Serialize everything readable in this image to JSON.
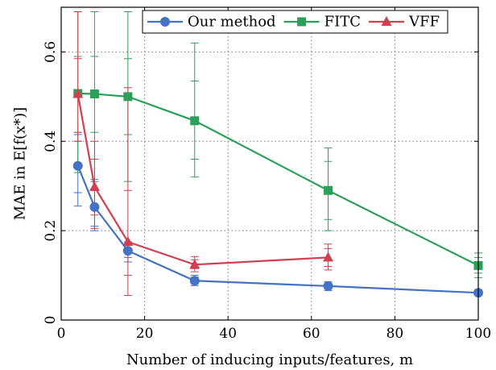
{
  "chart_data": {
    "type": "line",
    "xlabel": "Number of inducing inputs/features, m",
    "ylabel": "MAE in E[f(x*)]",
    "xlim": [
      0,
      100
    ],
    "ylim": [
      0,
      0.7
    ],
    "xticks": [
      0,
      20,
      40,
      60,
      80,
      100
    ],
    "yticks": [
      0,
      0.2,
      0.4,
      0.6
    ],
    "xtick_labels": [
      "0",
      "20",
      "40",
      "60",
      "80",
      "100"
    ],
    "ytick_labels": [
      "0",
      "0.2",
      "0.4",
      "0.6"
    ],
    "grid": "dotted-major",
    "legend_position": "top-right",
    "series": [
      {
        "name": "Our method",
        "color": "#4472c4",
        "marker": "circle",
        "x": [
          4,
          8,
          16,
          32,
          64,
          100
        ],
        "y": [
          0.345,
          0.253,
          0.155,
          0.088,
          0.076,
          0.061
        ],
        "err_outer": [
          [
            0.255,
            0.415
          ],
          [
            0.2,
            0.31
          ],
          [
            0.13,
            0.175
          ],
          [
            0.077,
            0.1
          ],
          [
            0.066,
            0.086
          ],
          [
            0.055,
            0.068
          ]
        ],
        "err_inner": [
          [
            0.285,
            0.4
          ],
          [
            0.21,
            0.29
          ],
          [
            0.14,
            0.168
          ],
          [
            0.081,
            0.096
          ],
          [
            0.069,
            0.083
          ],
          [
            0.057,
            0.066
          ]
        ]
      },
      {
        "name": "FITC",
        "color": "#2ca05a",
        "marker": "square",
        "x": [
          4,
          8,
          16,
          32,
          64,
          100
        ],
        "y": [
          0.507,
          0.506,
          0.5,
          0.446,
          0.29,
          0.122
        ],
        "err_outer": [
          [
            0.33,
            0.69
          ],
          [
            0.315,
            0.69
          ],
          [
            0.31,
            0.69
          ],
          [
            0.32,
            0.62
          ],
          [
            0.2,
            0.385
          ],
          [
            0.095,
            0.15
          ]
        ],
        "err_inner": [
          [
            0.42,
            0.59
          ],
          [
            0.42,
            0.59
          ],
          [
            0.415,
            0.585
          ],
          [
            0.36,
            0.535
          ],
          [
            0.225,
            0.355
          ],
          [
            0.105,
            0.14
          ]
        ]
      },
      {
        "name": "VFF",
        "color": "#d23f50",
        "marker": "triangle",
        "x": [
          4,
          8,
          16,
          32,
          64
        ],
        "y": [
          0.506,
          0.298,
          0.175,
          0.124,
          0.14
        ],
        "err_outer": [
          [
            0.4,
            0.69
          ],
          [
            0.205,
            0.4
          ],
          [
            0.055,
            0.52
          ],
          [
            0.108,
            0.142
          ],
          [
            0.112,
            0.17
          ]
        ],
        "err_inner": [
          [
            0.42,
            0.585
          ],
          [
            0.235,
            0.36
          ],
          [
            0.1,
            0.29
          ],
          [
            0.115,
            0.135
          ],
          [
            0.12,
            0.16
          ]
        ]
      }
    ]
  }
}
